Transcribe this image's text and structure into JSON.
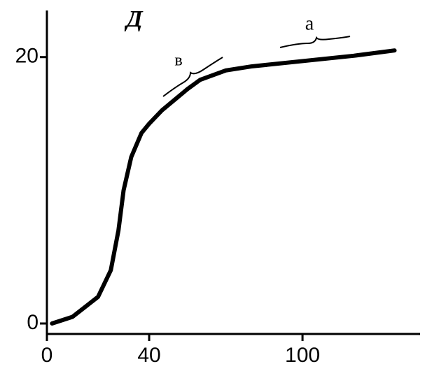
{
  "chart_data": {
    "type": "line",
    "title": "Д",
    "annotations": [
      "а",
      "в"
    ],
    "x": [
      2,
      10,
      20,
      25,
      28,
      30,
      33,
      37,
      40,
      45,
      50,
      55,
      60,
      70,
      80,
      100,
      120,
      136
    ],
    "series": [
      {
        "color": "#000000",
        "values": [
          0,
          0.5,
          2,
          4,
          7,
          10,
          12.5,
          14.3,
          15,
          16,
          16.8,
          17.6,
          18.3,
          19,
          19.3,
          19.7,
          20.1,
          20.5
        ]
      }
    ],
    "xlim": [
      0,
      146
    ],
    "xticks": [
      0,
      40,
      100
    ],
    "ylim": [
      0,
      23.5
    ],
    "yticks": [
      0,
      20
    ]
  }
}
